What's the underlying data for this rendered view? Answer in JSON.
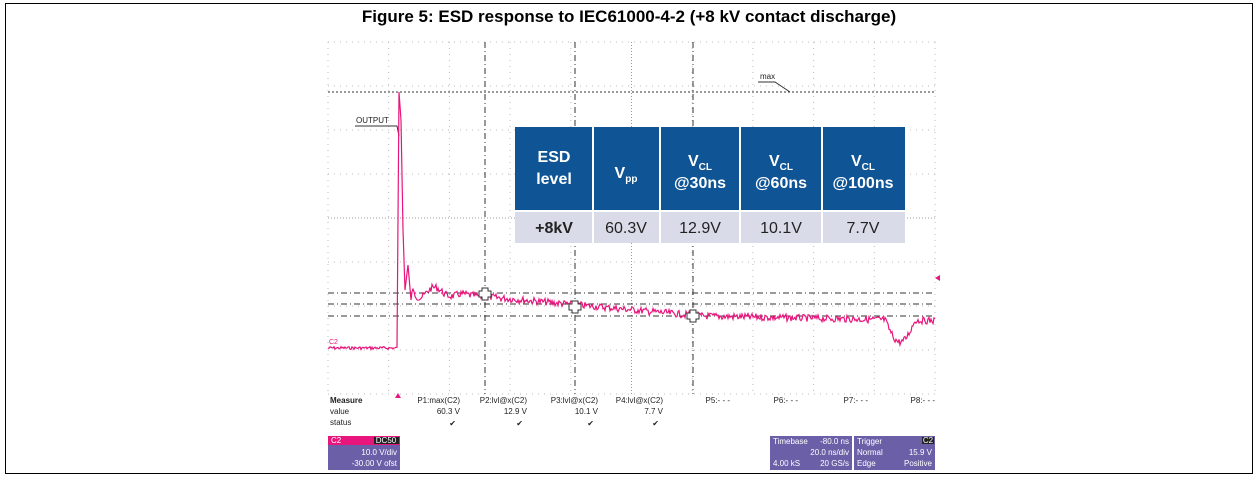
{
  "figure": {
    "title": "Figure 5: ESD response to IEC61000-4-2 (+8 kV contact discharge)",
    "scope_labels": {
      "max": "max",
      "output": "OUTPUT",
      "channel": "C2"
    },
    "table": {
      "headers": [
        {
          "line1": "ESD",
          "line2": "level"
        },
        {
          "base": "V",
          "sub": "pp"
        },
        {
          "base": "V",
          "sub": "CL",
          "line2": "@30ns"
        },
        {
          "base": "V",
          "sub": "CL",
          "line2": "@60ns"
        },
        {
          "base": "V",
          "sub": "CL",
          "line2": "@100ns"
        }
      ],
      "row": [
        "+8kV",
        "60.3V",
        "12.9V",
        "10.1V",
        "7.7V"
      ]
    },
    "measure": {
      "row_labels": [
        "Measure",
        "value",
        "status"
      ],
      "params": [
        "P1:max(C2)",
        "P2:lvl@x(C2)",
        "P3:lvl@x(C2)",
        "P4:lvl@x(C2)",
        "P5:- - -",
        "P6:- - -",
        "P7:- - -",
        "P8:- - -"
      ],
      "values": [
        "60.3 V",
        "12.9 V",
        "10.1 V",
        "7.7 V"
      ],
      "status": [
        "✔",
        "✔",
        "✔",
        "✔"
      ]
    },
    "channel_box": {
      "name": "C2",
      "coupling": "DC50",
      "scale": "10.0 V/div",
      "offset": "-30.00 V ofst"
    },
    "timebase_box": {
      "label": "Timebase",
      "delay": "-80.0 ns",
      "scale": "20.0 ns/div",
      "samples": "4.00 kS",
      "rate": "20 GS/s"
    },
    "trigger_box": {
      "label": "Trigger",
      "source": "C2",
      "mode": "Normal",
      "level": "15.9 V",
      "type": "Edge",
      "slope": "Positive"
    }
  }
}
